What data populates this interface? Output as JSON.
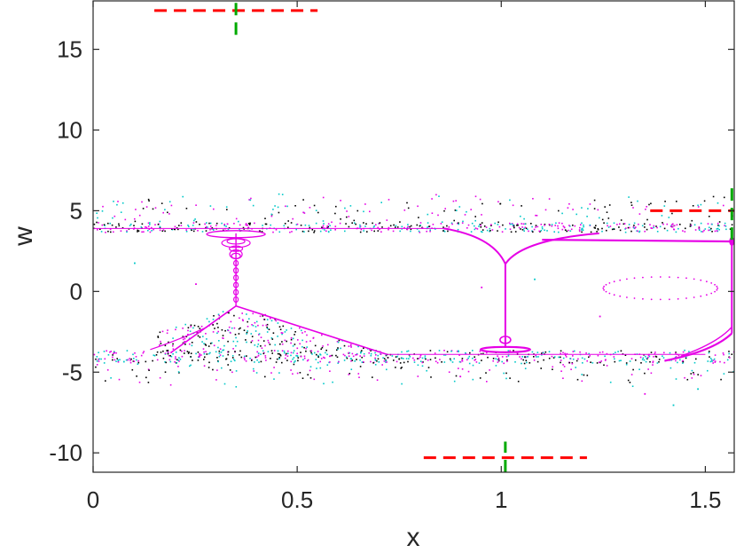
{
  "chart_data": {
    "type": "scatter",
    "title": "",
    "xlabel": "x",
    "ylabel": "w",
    "xlim": [
      0,
      1.5708
    ],
    "ylim": [
      -11.2,
      18
    ],
    "xticks": [
      0,
      0.5,
      1,
      1.5
    ],
    "xtick_labels": [
      "0",
      "0.5",
      "1",
      "1.5"
    ],
    "yticks": [
      -10,
      -5,
      0,
      5,
      10,
      15
    ],
    "ytick_labels": [
      "-10",
      "-5",
      "0",
      "5",
      "10",
      "15"
    ],
    "grid": false,
    "box": true,
    "series_colors": {
      "magenta": "#e600e6",
      "cyan": "#00c8c8",
      "black": "#000000",
      "red_marker": "#ff0000",
      "green_marker": "#00aa00"
    },
    "band_levels": {
      "upper": 4.0,
      "lower": -4.0
    },
    "bifurcation_curves": [
      {
        "name_hint": "left-branch",
        "x_start": 0.19,
        "x_end": 0.72,
        "peak_x": 0.35,
        "peak_w": -0.9
      },
      {
        "name_hint": "middle-branch",
        "x_start": 0.86,
        "x_end": 1.24,
        "center_x": 1.01
      },
      {
        "name_hint": "right-branch",
        "x_start": 1.37,
        "x_end": 1.57
      }
    ],
    "marker_crosses": [
      {
        "x": 0.35,
        "w": 17.4,
        "half_width": 0.2,
        "v_extent": [
          15.9,
          17.9
        ]
      },
      {
        "x": 1.01,
        "w": -10.3,
        "half_width": 0.2,
        "v_extent": [
          -11.2,
          -9.3
        ]
      },
      {
        "x": 1.565,
        "w": 5.0,
        "half_width": 0.2,
        "v_extent": [
          3.2,
          6.5
        ]
      }
    ]
  }
}
